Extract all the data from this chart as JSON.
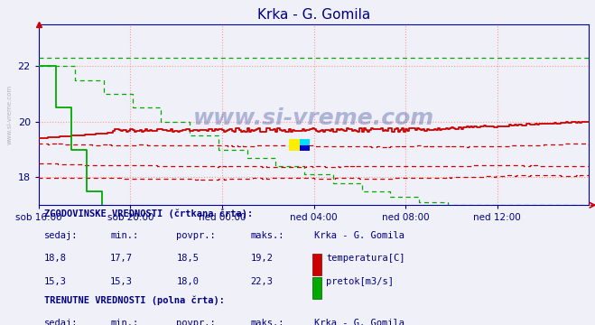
{
  "title": "Krka - G. Gomila",
  "title_color": "#000080",
  "bg_color": "#f0f0f8",
  "plot_bg_color": "#f0f0f8",
  "grid_color": "#ff9999",
  "x_label_color": "#000080",
  "y_label_color": "#000080",
  "ylim": [
    17.0,
    23.5
  ],
  "yticks": [
    18,
    20,
    22
  ],
  "n_points": 289,
  "x_tick_labels": [
    "sob 16:00",
    "sob 20:00",
    "ned 00:00",
    "ned 04:00",
    "ned 08:00",
    "ned 12:00"
  ],
  "x_tick_positions": [
    0.0,
    0.1667,
    0.3333,
    0.5,
    0.6667,
    0.8333
  ],
  "watermark": "www.si-vreme.com",
  "watermark_color": "#334499",
  "watermark_alpha": 0.35,
  "temp_hist_color": "#cc0000",
  "temp_curr_color": "#cc0000",
  "flow_hist_color": "#00aa00",
  "flow_curr_color": "#00aa00",
  "table_color": "#000080",
  "axis_color": "#0000aa",
  "spine_color": "#0000aa"
}
